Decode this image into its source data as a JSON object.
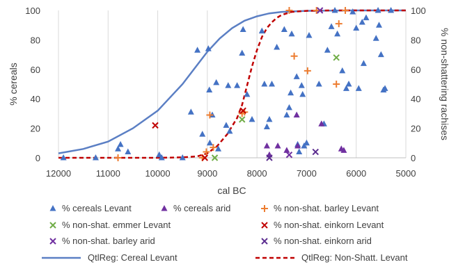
{
  "chart_data": {
    "type": "scatter",
    "xlabel": "cal BC",
    "ylabel": "% cereals",
    "y2label": "% non-shattering rachises",
    "x_reversed": true,
    "xlim": [
      12000,
      5000
    ],
    "ylim": [
      0,
      100
    ],
    "y2lim": [
      0,
      100
    ],
    "x_ticks": [
      "12000",
      "11000",
      "10000",
      "9000",
      "8000",
      "7000",
      "6000",
      "5000"
    ],
    "y_ticks": [
      "0",
      "20",
      "40",
      "60",
      "80",
      "100"
    ],
    "y2_ticks": [
      "0",
      "20",
      "40",
      "60",
      "80",
      "100"
    ],
    "grid": "vertical",
    "legend_position": "bottom",
    "colors": {
      "cereals_levant": "#4472C4",
      "cereals_arid": "#7030A0",
      "barley_levant": "#ED7D31",
      "emmer_levant": "#70AD47",
      "einkorn_levant": "#C00000",
      "barley_arid": "#7030A0",
      "einkorn_arid": "#5B2C8F",
      "cereal_curve": "#5B7FC4",
      "nonshatt_curve": "#C00000"
    },
    "series": [
      {
        "name": "% cereals Levant",
        "marker": "triangle",
        "color": "#4472C4",
        "points": [
          [
            11900,
            0
          ],
          [
            11250,
            0
          ],
          [
            10800,
            6
          ],
          [
            10750,
            9
          ],
          [
            10600,
            4
          ],
          [
            9970,
            2
          ],
          [
            9920,
            0
          ],
          [
            9500,
            0
          ],
          [
            9330,
            31
          ],
          [
            9200,
            73
          ],
          [
            9100,
            16
          ],
          [
            8980,
            74
          ],
          [
            8960,
            46
          ],
          [
            8900,
            29
          ],
          [
            8950,
            10
          ],
          [
            8820,
            51
          ],
          [
            8780,
            6
          ],
          [
            8620,
            22
          ],
          [
            8550,
            18
          ],
          [
            8580,
            49
          ],
          [
            8400,
            49
          ],
          [
            8300,
            71
          ],
          [
            8280,
            87
          ],
          [
            8200,
            43
          ],
          [
            8100,
            26
          ],
          [
            7900,
            86
          ],
          [
            7850,
            50
          ],
          [
            7800,
            21
          ],
          [
            7750,
            26
          ],
          [
            7700,
            50
          ],
          [
            7600,
            75
          ],
          [
            7450,
            87
          ],
          [
            7400,
            29
          ],
          [
            7350,
            34
          ],
          [
            7320,
            44
          ],
          [
            7300,
            84
          ],
          [
            7200,
            55
          ],
          [
            7150,
            4
          ],
          [
            7100,
            49
          ],
          [
            7050,
            8
          ],
          [
            7000,
            10
          ],
          [
            6950,
            83
          ],
          [
            6650,
            23
          ],
          [
            6580,
            73
          ],
          [
            6500,
            89
          ],
          [
            6430,
            100
          ],
          [
            6380,
            84
          ],
          [
            6280,
            59
          ],
          [
            6200,
            47
          ],
          [
            6150,
            50
          ],
          [
            6070,
            99
          ],
          [
            6000,
            88
          ],
          [
            5950,
            47
          ],
          [
            5880,
            92
          ],
          [
            5850,
            64
          ],
          [
            5800,
            95
          ],
          [
            5600,
            81
          ],
          [
            5560,
            100
          ],
          [
            5540,
            90
          ],
          [
            5500,
            70
          ],
          [
            5450,
            46
          ],
          [
            5420,
            47
          ],
          [
            5300,
            100
          ],
          [
            7180,
            9
          ],
          [
            7080,
            43
          ],
          [
            6750,
            50
          ]
        ]
      },
      {
        "name": "% cereals arid",
        "marker": "triangle",
        "color": "#7030A0",
        "points": [
          [
            7800,
            8
          ],
          [
            7750,
            2
          ],
          [
            7580,
            8
          ],
          [
            7400,
            5
          ],
          [
            7200,
            29
          ],
          [
            7180,
            8
          ],
          [
            6700,
            23
          ],
          [
            6300,
            6
          ],
          [
            6250,
            5
          ]
        ]
      },
      {
        "name": "% non-shat. barley Levant",
        "marker": "plus",
        "color": "#ED7D31",
        "points": [
          [
            10800,
            0
          ],
          [
            9100,
            0
          ],
          [
            9020,
            4
          ],
          [
            8950,
            29
          ],
          [
            8880,
            7
          ],
          [
            8300,
            30
          ],
          [
            8250,
            31
          ],
          [
            7350,
            100
          ],
          [
            7250,
            69
          ],
          [
            6980,
            59
          ],
          [
            6400,
            50
          ],
          [
            6350,
            91
          ],
          [
            6220,
            100
          ],
          [
            6800,
            100
          ]
        ]
      },
      {
        "name": "% non-shat. emmer Levant",
        "marker": "x",
        "color": "#70AD47",
        "points": [
          [
            8850,
            0
          ],
          [
            8300,
            26
          ],
          [
            6400,
            68
          ]
        ]
      },
      {
        "name": "% non-shat. einkorn Levant",
        "marker": "x",
        "color": "#C00000",
        "points": [
          [
            10050,
            22
          ],
          [
            9050,
            0
          ],
          [
            8280,
            32
          ]
        ]
      },
      {
        "name": "% non-shat. barley arid",
        "marker": "x",
        "color": "#7030A0",
        "points": [
          [
            7350,
            2
          ],
          [
            6730,
            100
          ]
        ]
      },
      {
        "name": "% non-shat. einkorn arid",
        "marker": "x",
        "color": "#5B2C8F",
        "points": [
          [
            7750,
            0
          ],
          [
            6820,
            4
          ]
        ]
      }
    ],
    "curves": [
      {
        "name": "QtlReg: Cereal Levant",
        "style": "solid",
        "color": "#5B7FC4",
        "axis": "left",
        "x": [
          12000,
          11500,
          11000,
          10500,
          10000,
          9500,
          9250,
          9000,
          8750,
          8500,
          8250,
          8000,
          7750,
          7500,
          7000,
          6500,
          6000,
          5500,
          5000
        ],
        "y": [
          3,
          6,
          11,
          20,
          32,
          50,
          61,
          72,
          81,
          88,
          93,
          96,
          98,
          99,
          99.7,
          99.9,
          100,
          100,
          100
        ]
      },
      {
        "name": "QtlReg: Non-Shatt. Levant",
        "style": "dashed",
        "color": "#C00000",
        "axis": "right",
        "x": [
          12000,
          11000,
          10000,
          9500,
          9200,
          9000,
          8800,
          8600,
          8400,
          8300,
          8200,
          8100,
          8000,
          7900,
          7800,
          7700,
          7600,
          7500,
          7300,
          7000,
          6500,
          6000,
          5000
        ],
        "y": [
          0,
          0,
          0,
          0.3,
          1,
          3,
          8,
          16,
          27,
          36,
          49,
          62,
          73,
          82,
          88,
          92,
          95,
          97,
          99,
          99.7,
          100,
          100,
          100
        ]
      }
    ]
  }
}
